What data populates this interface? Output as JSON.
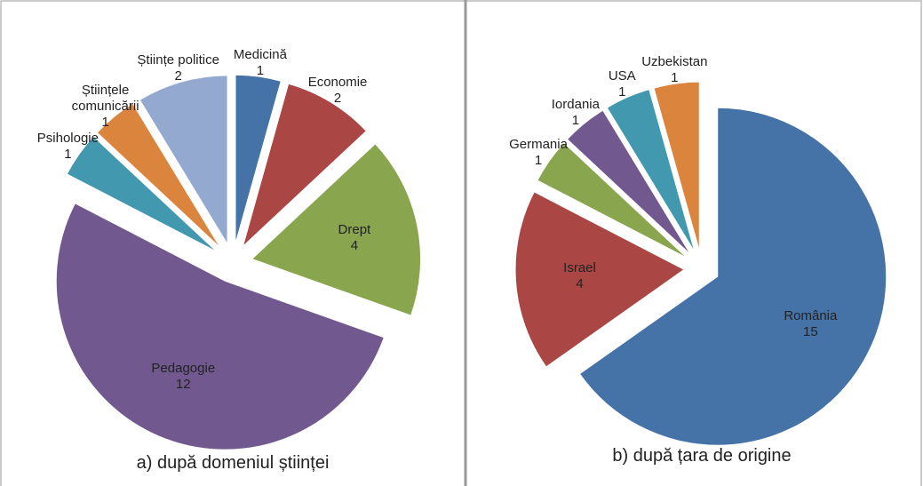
{
  "chart_data": [
    {
      "type": "pie",
      "title": "a) după domeniul științei",
      "categories": [
        "Medicină",
        "Economie",
        "Drept",
        "Pedagogie",
        "Psihologie",
        "Științele comunicării",
        "Științe politice"
      ],
      "values": [
        1,
        2,
        4,
        12,
        1,
        1,
        2
      ],
      "colors": [
        "#4572a7",
        "#aa4643",
        "#89a54e",
        "#71588f",
        "#4198af",
        "#db843d",
        "#93a9cf"
      ]
    },
    {
      "type": "pie",
      "title": "b) după țara de origine",
      "categories": [
        "România",
        "Israel",
        "Germania",
        "Iordania",
        "USA",
        "Uzbekistan"
      ],
      "values": [
        15,
        4,
        1,
        1,
        1,
        1
      ],
      "colors": [
        "#4572a7",
        "#aa4643",
        "#89a54e",
        "#71588f",
        "#4198af",
        "#db843d"
      ]
    }
  ]
}
